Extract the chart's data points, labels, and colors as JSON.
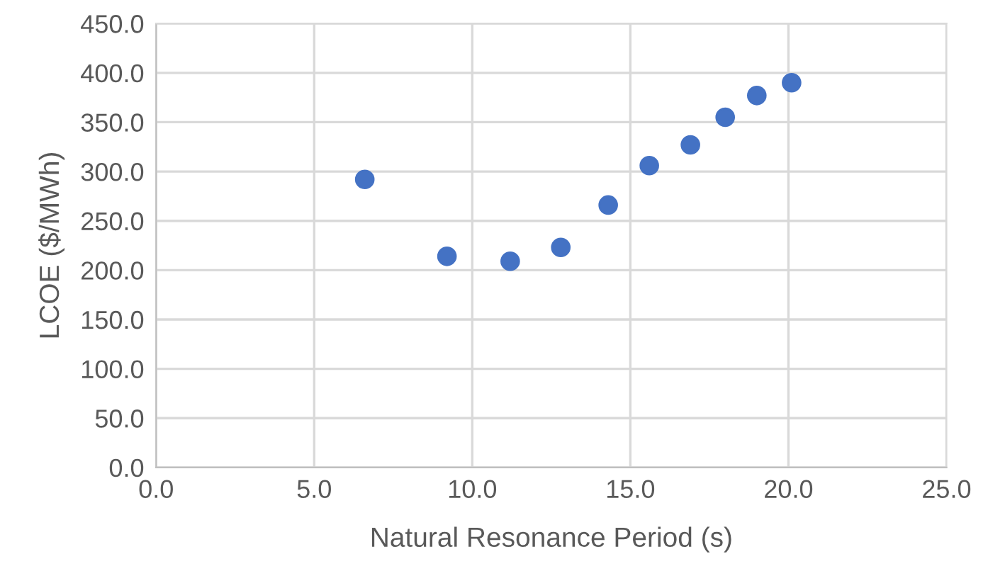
{
  "chart_data": {
    "type": "scatter",
    "xlabel": "Natural Resonance Period (s)",
    "ylabel": "LCOE ($/MWh)",
    "x": [
      6.6,
      9.2,
      11.2,
      12.8,
      14.3,
      15.6,
      16.9,
      18.0,
      19.0,
      20.1
    ],
    "series": [
      {
        "color": "#4472c4",
        "values": [
          292,
          214,
          209,
          223,
          266,
          306,
          327,
          355,
          377,
          390
        ]
      }
    ],
    "xlim": [
      0,
      25
    ],
    "xticks": [
      {
        "value": 0,
        "label": "0.0"
      },
      {
        "value": 5,
        "label": "5.0"
      },
      {
        "value": 10,
        "label": "10.0"
      },
      {
        "value": 15,
        "label": "15.0"
      },
      {
        "value": 20,
        "label": "20.0"
      },
      {
        "value": 25,
        "label": "25.0"
      }
    ],
    "ylim": [
      0,
      450
    ],
    "yticks": [
      {
        "value": 0,
        "label": "0.0"
      },
      {
        "value": 50,
        "label": "50.0"
      },
      {
        "value": 100,
        "label": "100.0"
      },
      {
        "value": 150,
        "label": "150.0"
      },
      {
        "value": 200,
        "label": "200.0"
      },
      {
        "value": 250,
        "label": "250.0"
      },
      {
        "value": 300,
        "label": "300.0"
      },
      {
        "value": 350,
        "label": "350.0"
      },
      {
        "value": 400,
        "label": "400.0"
      },
      {
        "value": 450,
        "label": "450.0"
      }
    ],
    "grid": true,
    "marker": "circle",
    "legend": false
  }
}
